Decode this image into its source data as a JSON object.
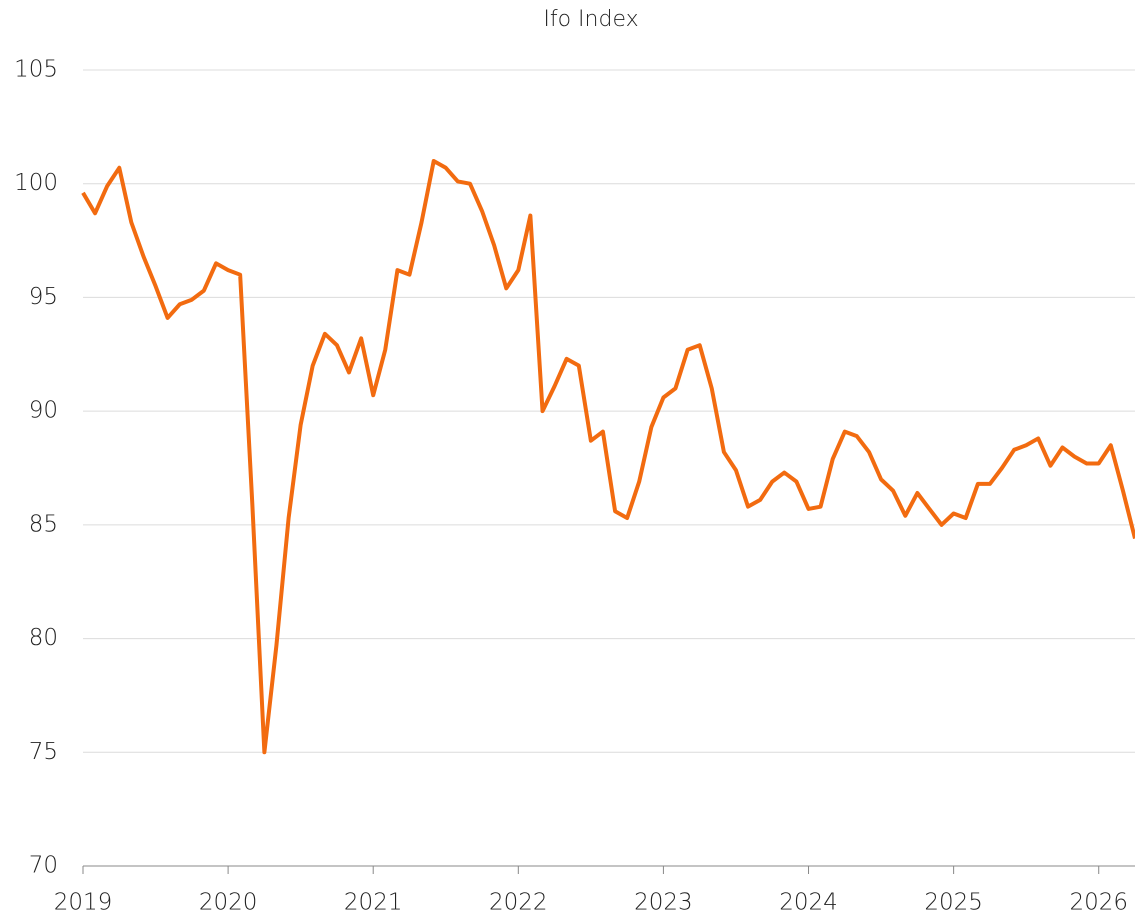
{
  "chart_data": {
    "type": "line",
    "title": "Ifo Index",
    "x": [
      2019,
      2019.083,
      2019.167,
      2019.25,
      2019.333,
      2019.417,
      2019.5,
      2019.583,
      2019.667,
      2019.75,
      2019.833,
      2019.917,
      2020,
      2020.083,
      2020.167,
      2020.25,
      2020.333,
      2020.417,
      2020.5,
      2020.583,
      2020.667,
      2020.75,
      2020.833,
      2020.917,
      2021,
      2021.083,
      2021.167,
      2021.25,
      2021.333,
      2021.417,
      2021.5,
      2021.583,
      2021.667,
      2021.75,
      2021.833,
      2021.917,
      2022,
      2022.083,
      2022.167,
      2022.25,
      2022.333,
      2022.417,
      2022.5,
      2022.583,
      2022.667,
      2022.75,
      2022.833,
      2022.917,
      2023,
      2023.083,
      2023.167,
      2023.25,
      2023.333,
      2023.417,
      2023.5,
      2023.583,
      2023.667,
      2023.75,
      2023.833,
      2023.917,
      2024,
      2024.083,
      2024.167,
      2024.25,
      2024.333,
      2024.417,
      2024.5,
      2024.583,
      2024.667,
      2024.75,
      2024.833,
      2024.917,
      2025,
      2025.083,
      2025.167,
      2025.25,
      2025.333,
      2025.417,
      2025.5,
      2025.583,
      2025.667,
      2025.75,
      2025.833,
      2025.917,
      2026,
      2026.083,
      2026.167,
      2026.25
    ],
    "series": [
      {
        "name": "Ifo Index",
        "color": "#f26b10",
        "values": [
          99.6,
          98.7,
          99.9,
          100.7,
          98.3,
          96.8,
          95.5,
          94.1,
          94.7,
          94.9,
          95.3,
          96.5,
          96.2,
          96.0,
          85.9,
          75.0,
          79.7,
          85.3,
          89.4,
          92.0,
          93.4,
          92.9,
          91.7,
          93.2,
          90.7,
          92.7,
          96.2,
          96.0,
          98.3,
          101.0,
          100.7,
          100.1,
          100.0,
          98.8,
          97.3,
          95.4,
          96.2,
          98.6,
          90.0,
          91.1,
          92.3,
          92.0,
          88.7,
          89.1,
          85.6,
          85.3,
          86.9,
          89.3,
          90.6,
          91.0,
          92.7,
          92.9,
          91.0,
          88.2,
          87.4,
          85.8,
          86.1,
          86.9,
          87.3,
          86.9,
          85.7,
          85.8,
          87.9,
          89.1,
          88.9,
          88.2,
          87.0,
          86.5,
          85.4,
          86.4,
          85.7,
          85.0,
          85.5,
          85.3,
          86.8,
          86.8,
          87.5,
          88.3,
          88.5,
          88.8,
          87.6,
          88.4,
          88.0,
          87.7,
          87.7,
          88.5,
          86.5,
          84.4
        ]
      }
    ],
    "xlim": [
      2019,
      2026.25
    ],
    "xticks": [
      2019,
      2020,
      2021,
      2022,
      2023,
      2024,
      2025,
      2026
    ],
    "ylim": [
      70,
      105
    ],
    "yticks": [
      70,
      75,
      80,
      85,
      90,
      95,
      100,
      105
    ],
    "grid": true
  }
}
